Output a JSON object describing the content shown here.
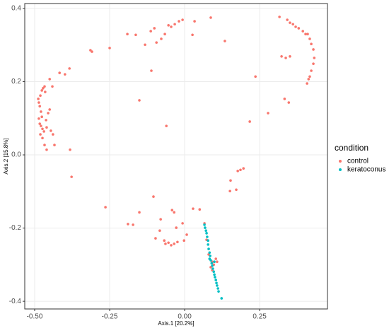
{
  "chart_data": {
    "type": "scatter",
    "x_label": "Axis.1   [20.2%]",
    "y_label": "Axis.2   [15.8%]",
    "xlim": [
      -0.533,
      0.476
    ],
    "ylim": [
      -0.421,
      0.4135
    ],
    "xticks": [
      {
        "value": -0.5,
        "label": "-0.50"
      },
      {
        "value": -0.25,
        "label": "-0.25"
      },
      {
        "value": 0,
        "label": "0.00"
      },
      {
        "value": 0.25,
        "label": "0.25"
      }
    ],
    "yticks": [
      -0.4,
      -0.2,
      {
        "value": 0,
        "label": "0.0"
      },
      0.2,
      0.4
    ],
    "grid": true,
    "legend_title": "condition",
    "legend_position": "right",
    "series": [
      {
        "name": "control",
        "color": "#F8766D",
        "x": [
          -0.488,
          -0.486,
          -0.481,
          -0.476,
          -0.472,
          -0.467,
          -0.465,
          -0.483,
          -0.479,
          -0.486,
          -0.483,
          -0.479,
          -0.474,
          -0.469,
          -0.481,
          -0.474,
          -0.467,
          -0.46,
          -0.462,
          -0.455,
          -0.45,
          -0.446,
          -0.439,
          -0.434,
          -0.45,
          -0.441,
          -0.46,
          -0.476,
          -0.417,
          -0.399,
          -0.384,
          -0.382,
          -0.377,
          -0.314,
          -0.309,
          -0.25,
          -0.191,
          -0.163,
          -0.132,
          -0.113,
          -0.101,
          -0.094,
          -0.078,
          -0.066,
          -0.054,
          -0.045,
          -0.033,
          -0.019,
          -0.007,
          0.026,
          0.033,
          0.087,
          0.134,
          -0.111,
          -0.151,
          -0.061,
          0.316,
          0.342,
          0.351,
          0.361,
          0.37,
          0.38,
          0.394,
          0.403,
          0.41,
          0.417,
          0.422,
          0.429,
          0.432,
          0.429,
          0.422,
          0.417,
          0.413,
          0.408,
          0.323,
          0.337,
          0.351,
          0.236,
          0.333,
          0.347,
          0.278,
          0.217,
          0.196,
          0.186,
          0.177,
          0.153,
          0.172,
          0.151,
          -0.104,
          -0.172,
          -0.189,
          -0.264,
          -0.151,
          -0.08,
          -0.042,
          -0.035,
          -0.028,
          0.028,
          0.05,
          0.066,
          -0.083,
          -0.097,
          -0.068,
          -0.064,
          -0.054,
          -0.045,
          -0.035,
          -0.024,
          0.007,
          -0.007,
          -0.002,
          0.073,
          0.08,
          0.092,
          0.097,
          0.087,
          0.092,
          0.104,
          0.108
        ],
        "y": [
          0.153,
          0.143,
          0.162,
          0.176,
          0.182,
          0.187,
          0.172,
          0.133,
          0.118,
          0.099,
          0.085,
          0.079,
          0.071,
          0.064,
          0.056,
          0.046,
          0.027,
          0.014,
          0.095,
          0.114,
          0.124,
          0.066,
          0.056,
          0.027,
          0.207,
          0.187,
          0.075,
          0.104,
          0.224,
          0.22,
          0.236,
          0.014,
          -0.06,
          0.286,
          0.282,
          0.292,
          0.33,
          0.328,
          0.301,
          0.338,
          0.346,
          0.307,
          0.317,
          0.33,
          0.354,
          0.35,
          0.357,
          0.365,
          0.369,
          0.328,
          0.365,
          0.375,
          0.311,
          0.23,
          0.149,
          0.079,
          0.377,
          0.369,
          0.361,
          0.357,
          0.35,
          0.346,
          0.338,
          0.33,
          0.33,
          0.317,
          0.303,
          0.288,
          0.265,
          0.249,
          0.23,
          0.214,
          0.207,
          0.195,
          0.269,
          0.265,
          0.269,
          0.214,
          0.153,
          0.143,
          0.114,
          0.091,
          -0.037,
          -0.041,
          -0.044,
          -0.07,
          -0.095,
          -0.099,
          -0.114,
          -0.191,
          -0.189,
          -0.143,
          -0.157,
          -0.176,
          -0.151,
          -0.157,
          -0.199,
          -0.147,
          -0.149,
          -0.187,
          -0.207,
          -0.228,
          -0.234,
          -0.243,
          -0.24,
          -0.247,
          -0.243,
          -0.238,
          -0.218,
          -0.187,
          -0.234,
          -0.232,
          -0.272,
          -0.292,
          -0.3,
          -0.307,
          -0.315,
          -0.284,
          -0.292
        ]
      },
      {
        "name": "keratoconus",
        "color": "#00BFC4",
        "x": [
          0.066,
          0.068,
          0.071,
          0.073,
          0.075,
          0.078,
          0.078,
          0.08,
          0.083,
          0.085,
          0.087,
          0.09,
          0.092,
          0.094,
          0.097,
          0.099,
          0.101,
          0.104,
          0.106,
          0.108,
          0.111,
          0.113,
          0.123,
          0.083,
          0.099
        ],
        "y": [
          -0.191,
          -0.199,
          -0.207,
          -0.214,
          -0.224,
          -0.234,
          -0.245,
          -0.257,
          -0.267,
          -0.276,
          -0.288,
          -0.296,
          -0.303,
          -0.311,
          -0.319,
          -0.327,
          -0.334,
          -0.342,
          -0.35,
          -0.357,
          -0.365,
          -0.373,
          -0.392,
          -0.284,
          -0.292
        ]
      }
    ]
  }
}
